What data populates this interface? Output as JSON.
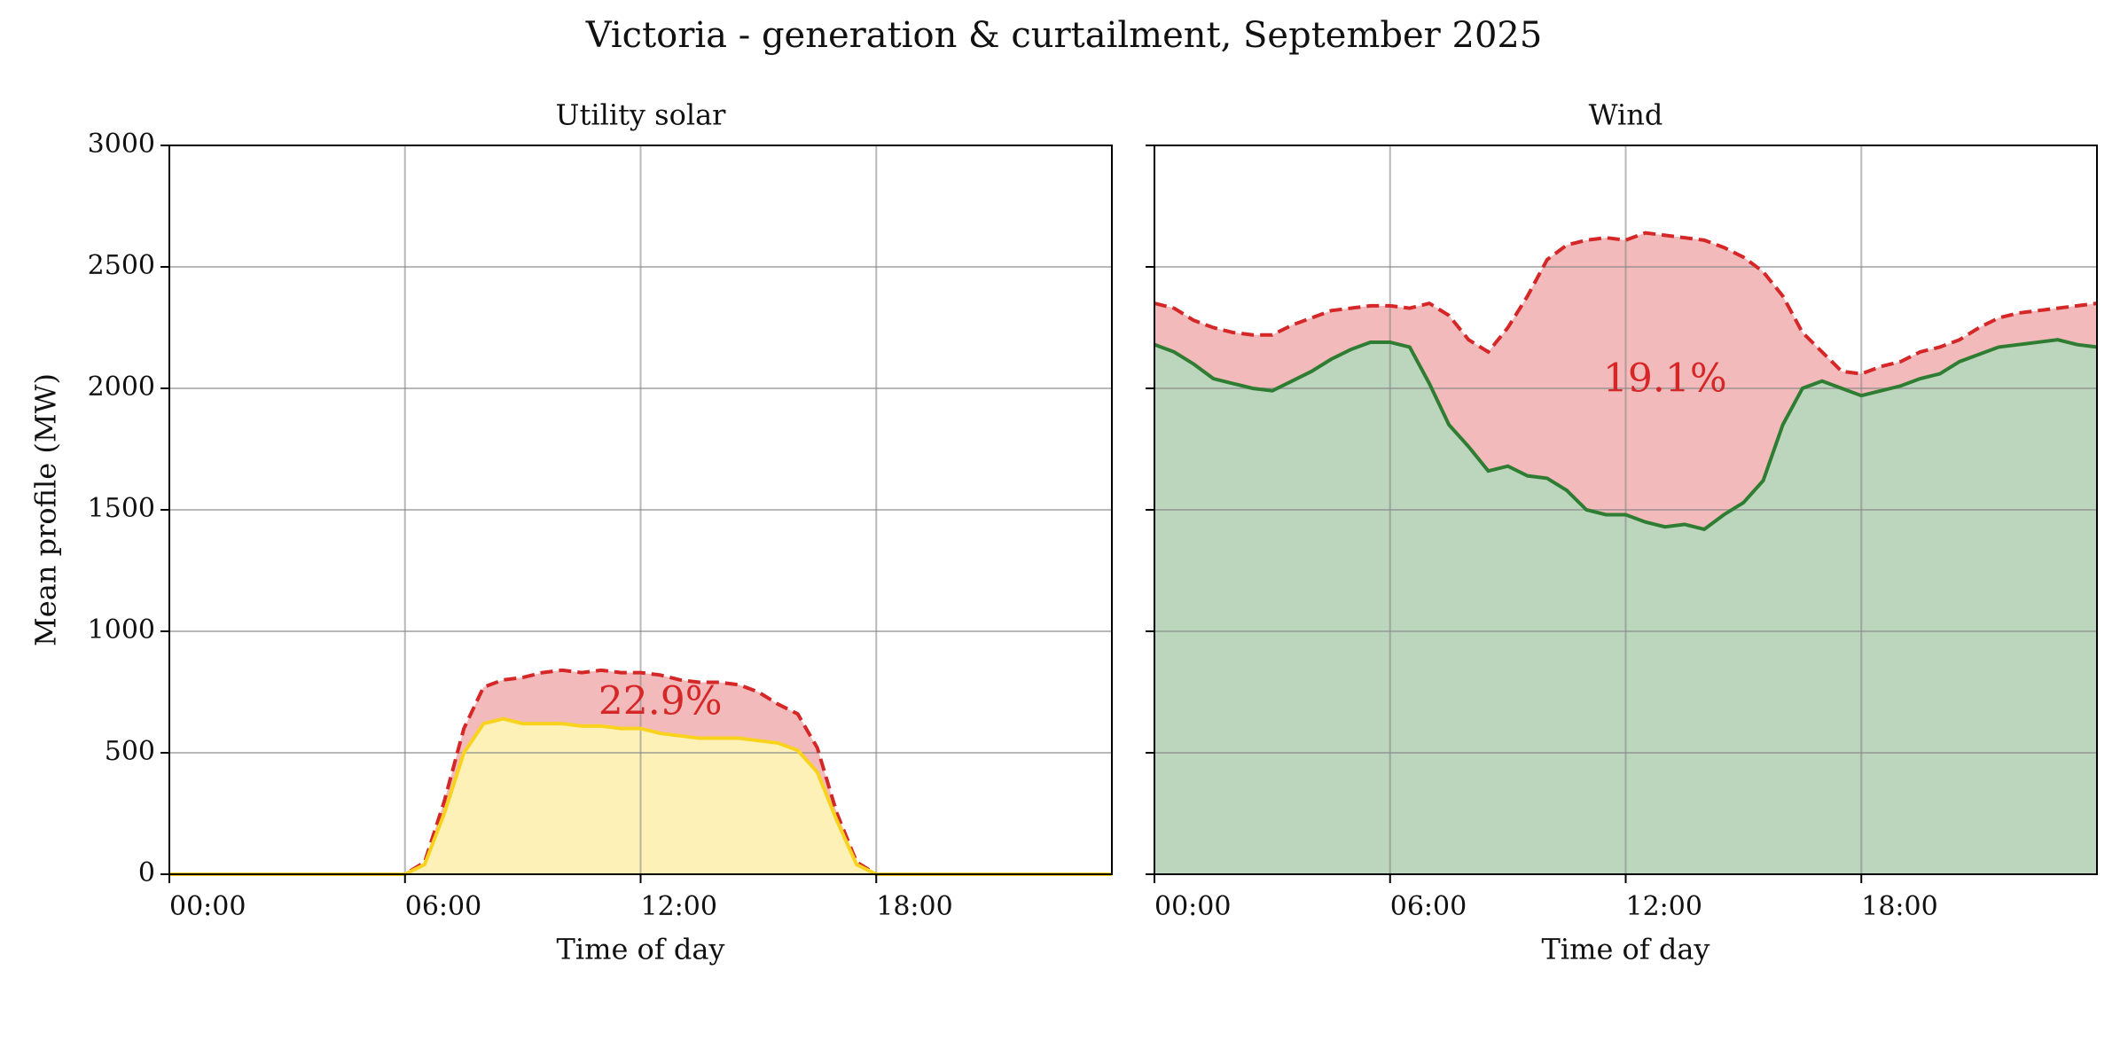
{
  "title": "Victoria - generation & curtailment, September 2025",
  "chart_data": [
    {
      "type": "area",
      "title": "Utility solar",
      "x_label": "Time of day",
      "y_label": "Mean profile (MW)",
      "x": [
        0,
        0.5,
        1,
        1.5,
        2,
        2.5,
        3,
        3.5,
        4,
        4.5,
        5,
        5.5,
        6,
        6.5,
        7,
        7.5,
        8,
        8.5,
        9,
        9.5,
        10,
        10.5,
        11,
        11.5,
        12,
        12.5,
        13,
        13.5,
        14,
        14.5,
        15,
        15.5,
        16,
        16.5,
        17,
        17.5,
        18,
        18.5,
        19,
        19.5,
        20,
        20.5,
        21,
        21.5,
        22,
        22.5,
        23,
        23.5,
        24
      ],
      "series": [
        {
          "color": "#d62728",
          "values": [
            0,
            0,
            0,
            0,
            0,
            0,
            0,
            0,
            0,
            0,
            0,
            0,
            0,
            50,
            300,
            600,
            770,
            800,
            810,
            830,
            840,
            830,
            840,
            830,
            830,
            820,
            800,
            790,
            790,
            780,
            750,
            700,
            660,
            520,
            250,
            50,
            0,
            0,
            0,
            0,
            0,
            0,
            0,
            0,
            0,
            0,
            0,
            0,
            0
          ]
        },
        {
          "color": "#f9d21e",
          "values": [
            0,
            0,
            0,
            0,
            0,
            0,
            0,
            0,
            0,
            0,
            0,
            0,
            0,
            40,
            250,
            500,
            620,
            640,
            620,
            620,
            620,
            610,
            610,
            600,
            600,
            580,
            570,
            560,
            560,
            560,
            550,
            540,
            510,
            420,
            220,
            40,
            0,
            0,
            0,
            0,
            0,
            0,
            0,
            0,
            0,
            0,
            0,
            0,
            0
          ]
        }
      ],
      "annotation": "22.9%",
      "xlim": [
        0,
        24
      ],
      "xticks": [
        {
          "value": 0,
          "label": "00:00"
        },
        {
          "value": 6,
          "label": "06:00"
        },
        {
          "value": 12,
          "label": "12:00"
        },
        {
          "value": 18,
          "label": "18:00"
        }
      ],
      "ylim": [
        0,
        3000
      ],
      "yticks": [
        0,
        500,
        1000,
        1500,
        2000,
        2500,
        3000
      ],
      "grid": true
    },
    {
      "type": "area",
      "title": "Wind",
      "x_label": "Time of day",
      "x": [
        0,
        0.5,
        1,
        1.5,
        2,
        2.5,
        3,
        3.5,
        4,
        4.5,
        5,
        5.5,
        6,
        6.5,
        7,
        7.5,
        8,
        8.5,
        9,
        9.5,
        10,
        10.5,
        11,
        11.5,
        12,
        12.5,
        13,
        13.5,
        14,
        14.5,
        15,
        15.5,
        16,
        16.5,
        17,
        17.5,
        18,
        18.5,
        19,
        19.5,
        20,
        20.5,
        21,
        21.5,
        22,
        22.5,
        23,
        23.5,
        24
      ],
      "series": [
        {
          "color": "#d62728",
          "values": [
            2350,
            2330,
            2280,
            2250,
            2230,
            2220,
            2220,
            2260,
            2290,
            2320,
            2330,
            2340,
            2340,
            2330,
            2350,
            2300,
            2200,
            2150,
            2250,
            2380,
            2530,
            2590,
            2610,
            2620,
            2610,
            2640,
            2630,
            2620,
            2610,
            2580,
            2540,
            2480,
            2380,
            2230,
            2150,
            2070,
            2060,
            2090,
            2110,
            2150,
            2170,
            2200,
            2250,
            2290,
            2310,
            2320,
            2330,
            2340,
            2350
          ]
        },
        {
          "color": "#2e7d32",
          "values": [
            2180,
            2150,
            2100,
            2040,
            2020,
            2000,
            1990,
            2030,
            2070,
            2120,
            2160,
            2190,
            2190,
            2170,
            2020,
            1850,
            1760,
            1660,
            1680,
            1640,
            1630,
            1580,
            1500,
            1480,
            1480,
            1450,
            1430,
            1440,
            1420,
            1480,
            1530,
            1620,
            1850,
            2000,
            2030,
            2000,
            1970,
            1990,
            2010,
            2040,
            2060,
            2110,
            2140,
            2170,
            2180,
            2190,
            2200,
            2180,
            2170
          ]
        }
      ],
      "annotation": "19.1%",
      "xlim": [
        0,
        24
      ],
      "xticks": [
        {
          "value": 0,
          "label": "00:00"
        },
        {
          "value": 6,
          "label": "06:00"
        },
        {
          "value": 12,
          "label": "12:00"
        },
        {
          "value": 18,
          "label": "18:00"
        }
      ],
      "ylim": [
        0,
        3000
      ],
      "yticks": [
        0,
        500,
        1000,
        1500,
        2000,
        2500,
        3000
      ],
      "grid": true
    }
  ]
}
